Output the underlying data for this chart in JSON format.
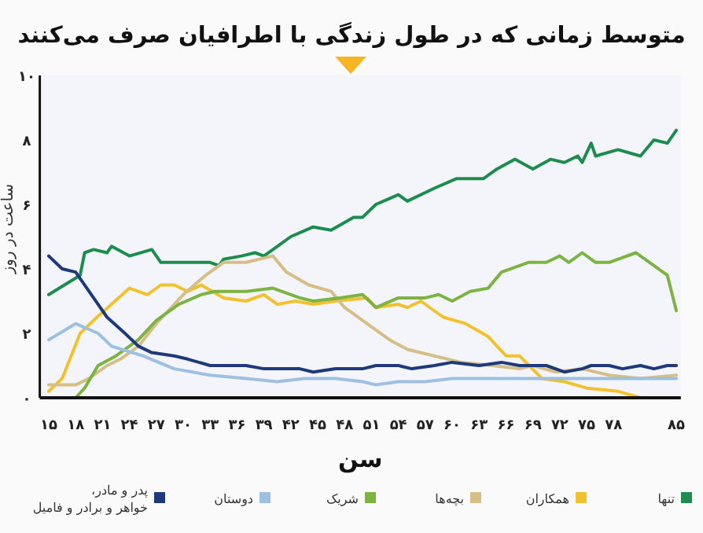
{
  "chart_data": {
    "type": "line",
    "title": "متوسط زمانی که در طول زندگی با اطرافیان صرف می‌کنند",
    "xlabel": "سن",
    "ylabel": "ساعت در روز",
    "xlim": [
      14,
      85.5
    ],
    "ylim": [
      0,
      10
    ],
    "xticks": [
      {
        "value": 15,
        "label": "۱۵"
      },
      {
        "value": 18,
        "label": "۱۸"
      },
      {
        "value": 21,
        "label": "۲۱"
      },
      {
        "value": 24,
        "label": "۲۴"
      },
      {
        "value": 27,
        "label": "۲۷"
      },
      {
        "value": 30,
        "label": "۳۰"
      },
      {
        "value": 33,
        "label": "۳۳"
      },
      {
        "value": 36,
        "label": "۳۶"
      },
      {
        "value": 39,
        "label": "۳۹"
      },
      {
        "value": 42,
        "label": "۴۲"
      },
      {
        "value": 45,
        "label": "۴۵"
      },
      {
        "value": 48,
        "label": "۴۸"
      },
      {
        "value": 51,
        "label": "۵۱"
      },
      {
        "value": 54,
        "label": "۵۴"
      },
      {
        "value": 57,
        "label": "۵۷"
      },
      {
        "value": 60,
        "label": "۶۰"
      },
      {
        "value": 63,
        "label": "۶۳"
      },
      {
        "value": 66,
        "label": "۶۶"
      },
      {
        "value": 69,
        "label": "۶۹"
      },
      {
        "value": 72,
        "label": "۷۲"
      },
      {
        "value": 75,
        "label": "۷۵"
      },
      {
        "value": 78,
        "label": "۷۸"
      },
      {
        "value": 85,
        "label": "۸۵"
      }
    ],
    "yticks": [
      {
        "value": 0,
        "label": "۰"
      },
      {
        "value": 2,
        "label": "۲"
      },
      {
        "value": 4,
        "label": "۴"
      },
      {
        "value": 6,
        "label": "۶"
      },
      {
        "value": 8,
        "label": "۸"
      },
      {
        "value": 10,
        "label": "۱۰"
      }
    ],
    "legend": "bottom",
    "grid": false,
    "series": [
      {
        "name": "تنها",
        "color": "#1e8c4e",
        "x": [
          15,
          18.5,
          19,
          20,
          21.5,
          22,
          24,
          26.5,
          27.5,
          30.5,
          33,
          34,
          34.5,
          36.5,
          38,
          39,
          40.5,
          42,
          44.5,
          46.5,
          49,
          50,
          51.5,
          54,
          55,
          58,
          60.5,
          63.5,
          65,
          67,
          69,
          71,
          72.5,
          74,
          74.5,
          75.5,
          76,
          78.5,
          81,
          82.5,
          84,
          85
        ],
        "values": [
          3.2,
          3.8,
          4.5,
          4.6,
          4.5,
          4.7,
          4.4,
          4.6,
          4.2,
          4.2,
          4.2,
          4.1,
          4.3,
          4.4,
          4.5,
          4.4,
          4.7,
          5.0,
          5.3,
          5.2,
          5.6,
          5.6,
          6.0,
          6.3,
          6.1,
          6.5,
          6.8,
          6.8,
          7.1,
          7.4,
          7.1,
          7.4,
          7.3,
          7.5,
          7.3,
          7.9,
          7.5,
          7.7,
          7.5,
          8.0,
          7.9,
          8.3
        ]
      },
      {
        "name": "همکاران",
        "color": "#f2c12e",
        "x": [
          15,
          16.5,
          18.5,
          20,
          22,
          24,
          26,
          27.5,
          29,
          30.5,
          32,
          34.5,
          37,
          39,
          40.5,
          42.5,
          44.5,
          47,
          50.5,
          51.5,
          54,
          55,
          56.5,
          59,
          61.5,
          64,
          66,
          67.5,
          70,
          72.5,
          75,
          78.5,
          81,
          85
        ],
        "values": [
          0.2,
          0.6,
          2.0,
          2.4,
          2.9,
          3.4,
          3.2,
          3.5,
          3.5,
          3.3,
          3.5,
          3.1,
          3.0,
          3.2,
          2.9,
          3.0,
          2.9,
          3.0,
          3.1,
          2.8,
          2.9,
          2.8,
          3.0,
          2.5,
          2.3,
          1.9,
          1.3,
          1.3,
          0.6,
          0.5,
          0.3,
          0.2,
          0,
          0
        ]
      },
      {
        "name": "بچه‌ها",
        "color": "#d6bf86",
        "x": [
          15,
          18,
          19.5,
          21.5,
          23,
          25,
          27,
          30,
          32.5,
          34.5,
          37,
          40,
          41.5,
          44,
          46.5,
          48,
          50.5,
          53,
          55,
          58,
          61,
          64.5,
          67.5,
          69,
          71.5,
          74.5,
          77.5,
          81,
          85
        ],
        "values": [
          0.4,
          0.4,
          0.6,
          1.0,
          1.2,
          1.6,
          2.3,
          3.2,
          3.8,
          4.2,
          4.2,
          4.4,
          3.9,
          3.5,
          3.3,
          2.8,
          2.3,
          1.8,
          1.5,
          1.3,
          1.1,
          1.0,
          0.9,
          1.0,
          0.8,
          0.9,
          0.7,
          0.6,
          0.7
        ]
      },
      {
        "name": "شریک",
        "color": "#7cb342",
        "x": [
          18,
          19,
          20.5,
          22.5,
          25,
          27,
          29.5,
          32,
          33.5,
          37,
          40,
          43,
          44.5,
          47.5,
          50,
          51.5,
          54,
          57,
          58.5,
          60,
          62,
          64,
          65.5,
          68.5,
          70.5,
          72,
          73,
          74.5,
          76,
          77.5,
          80.5,
          82.5,
          84,
          85
        ],
        "values": [
          0,
          0.3,
          1.0,
          1.3,
          1.8,
          2.4,
          2.9,
          3.2,
          3.3,
          3.3,
          3.4,
          3.1,
          3.0,
          3.1,
          3.2,
          2.8,
          3.1,
          3.1,
          3.2,
          3.0,
          3.3,
          3.4,
          3.9,
          4.2,
          4.2,
          4.4,
          4.2,
          4.5,
          4.2,
          4.2,
          4.5,
          4.1,
          3.8,
          2.7
        ]
      },
      {
        "name": "دوستان",
        "color": "#9dbfe0",
        "x": [
          15,
          18,
          20.5,
          22,
          25.5,
          29,
          33,
          37,
          40.5,
          43.5,
          47,
          50,
          51.5,
          54,
          57,
          60,
          63,
          67.5,
          71.5,
          74.5,
          77.5,
          81,
          85
        ],
        "values": [
          1.8,
          2.3,
          2.0,
          1.6,
          1.3,
          0.9,
          0.7,
          0.6,
          0.5,
          0.6,
          0.6,
          0.5,
          0.4,
          0.5,
          0.5,
          0.6,
          0.6,
          0.6,
          0.6,
          0.6,
          0.6,
          0.6,
          0.6
        ]
      },
      {
        "name": "پدر و مادر،\nخواهر و برادر و فامیل",
        "color": "#1f3a7a",
        "x": [
          15,
          16.5,
          18,
          20,
          21.5,
          23.5,
          25,
          26.5,
          29,
          30.5,
          33,
          34.5,
          37,
          39,
          43,
          44.5,
          47,
          50,
          51.5,
          54,
          55.5,
          58,
          60,
          63,
          65.5,
          67.5,
          70.5,
          72.5,
          74.5,
          75.5,
          77.5,
          79,
          81,
          82.5,
          84,
          85
        ],
        "values": [
          4.4,
          4.0,
          3.9,
          3.1,
          2.5,
          2.0,
          1.6,
          1.4,
          1.3,
          1.2,
          1.0,
          1.0,
          1.0,
          0.9,
          0.9,
          0.8,
          0.9,
          0.9,
          1.0,
          1.0,
          0.9,
          1.0,
          1.1,
          1.0,
          1.1,
          1.0,
          1.0,
          0.8,
          0.9,
          1.0,
          1.0,
          0.9,
          1.0,
          0.9,
          1.0,
          1.0
        ]
      }
    ]
  }
}
